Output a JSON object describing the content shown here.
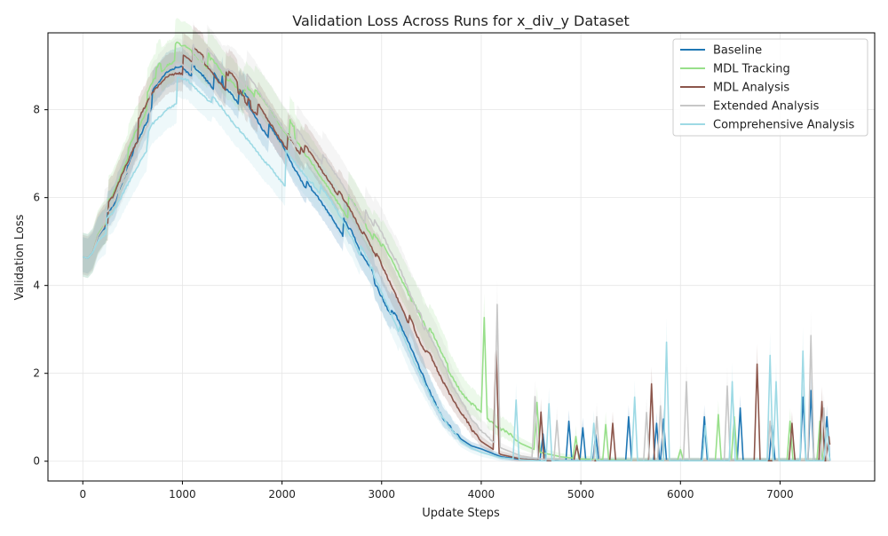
{
  "chart_data": {
    "type": "line",
    "title": "Validation Loss Across Runs for x_div_y Dataset",
    "xlabel": "Update Steps",
    "ylabel": "Validation Loss",
    "xlim": [
      -350,
      7950
    ],
    "ylim": [
      -0.45,
      9.75
    ],
    "xticks": [
      0,
      1000,
      2000,
      3000,
      4000,
      5000,
      6000,
      7000
    ],
    "yticks": [
      0,
      2,
      4,
      6,
      8
    ],
    "grid": true,
    "legend": "top-right",
    "series": [
      {
        "name": "Baseline",
        "color": "#1f77b4",
        "band": 0.35,
        "points": [
          [
            0,
            4.65
          ],
          [
            50,
            4.62
          ],
          [
            100,
            4.75
          ],
          [
            150,
            5.1
          ],
          [
            300,
            5.6
          ],
          [
            500,
            6.8
          ],
          [
            700,
            7.9
          ],
          [
            850,
            8.5
          ],
          [
            950,
            8.75
          ],
          [
            1000,
            8.8
          ],
          [
            1100,
            8.7
          ],
          [
            1200,
            8.6
          ],
          [
            1300,
            8.45
          ],
          [
            1400,
            8.2
          ],
          [
            1500,
            8.1
          ],
          [
            1600,
            7.9
          ],
          [
            1700,
            7.7
          ],
          [
            1800,
            7.4
          ],
          [
            1900,
            7.2
          ],
          [
            2000,
            6.95
          ],
          [
            2100,
            6.6
          ],
          [
            2200,
            6.3
          ],
          [
            2300,
            6.0
          ],
          [
            2400,
            5.75
          ],
          [
            2500,
            5.5
          ],
          [
            2600,
            5.2
          ],
          [
            2700,
            4.85
          ],
          [
            2800,
            4.4
          ],
          [
            2900,
            4.1
          ],
          [
            3000,
            3.7
          ],
          [
            3100,
            3.3
          ],
          [
            3200,
            2.85
          ],
          [
            3300,
            2.4
          ],
          [
            3400,
            1.9
          ],
          [
            3500,
            1.4
          ],
          [
            3600,
            0.95
          ],
          [
            3700,
            0.7
          ],
          [
            3800,
            0.5
          ],
          [
            3900,
            0.35
          ],
          [
            4000,
            0.28
          ],
          [
            4200,
            0.1
          ],
          [
            4400,
            0.04
          ],
          [
            4600,
            0.02
          ],
          [
            4800,
            0.01
          ],
          [
            5000,
            0.01
          ],
          [
            5500,
            0.01
          ],
          [
            6000,
            0.01
          ],
          [
            6500,
            0.01
          ],
          [
            7000,
            0.01
          ],
          [
            7500,
            0.01
          ]
        ],
        "spikes": [
          [
            4620,
            0.6
          ],
          [
            4880,
            0.9
          ],
          [
            5020,
            0.75
          ],
          [
            5150,
            0.6
          ],
          [
            5480,
            1.0
          ],
          [
            5760,
            0.85
          ],
          [
            5830,
            0.95
          ],
          [
            6240,
            1.0
          ],
          [
            6600,
            1.2
          ],
          [
            6920,
            0.8
          ],
          [
            7230,
            1.45
          ],
          [
            7310,
            1.6
          ],
          [
            7470,
            1.0
          ]
        ]
      },
      {
        "name": "MDL Tracking",
        "color": "#98df8a",
        "band": 0.45,
        "points": [
          [
            0,
            4.65
          ],
          [
            50,
            4.62
          ],
          [
            100,
            4.75
          ],
          [
            150,
            5.15
          ],
          [
            300,
            5.7
          ],
          [
            500,
            7.0
          ],
          [
            700,
            8.2
          ],
          [
            850,
            8.8
          ],
          [
            950,
            9.05
          ],
          [
            1050,
            9.05
          ],
          [
            1150,
            8.95
          ],
          [
            1300,
            8.8
          ],
          [
            1400,
            8.6
          ],
          [
            1500,
            8.45
          ],
          [
            1600,
            8.3
          ],
          [
            1700,
            8.15
          ],
          [
            1800,
            7.95
          ],
          [
            1900,
            7.75
          ],
          [
            2000,
            7.5
          ],
          [
            2100,
            7.25
          ],
          [
            2200,
            7.0
          ],
          [
            2300,
            6.8
          ],
          [
            2400,
            6.55
          ],
          [
            2500,
            6.3
          ],
          [
            2600,
            6.05
          ],
          [
            2700,
            5.75
          ],
          [
            2800,
            5.45
          ],
          [
            2900,
            5.1
          ],
          [
            3000,
            4.8
          ],
          [
            3100,
            4.4
          ],
          [
            3200,
            4.0
          ],
          [
            3300,
            3.6
          ],
          [
            3400,
            3.2
          ],
          [
            3500,
            2.75
          ],
          [
            3600,
            2.3
          ],
          [
            3700,
            1.9
          ],
          [
            3800,
            1.55
          ],
          [
            3900,
            1.3
          ],
          [
            4000,
            1.05
          ],
          [
            4200,
            0.7
          ],
          [
            4400,
            0.4
          ],
          [
            4600,
            0.2
          ],
          [
            4800,
            0.1
          ],
          [
            5000,
            0.05
          ],
          [
            5500,
            0.02
          ],
          [
            6000,
            0.01
          ],
          [
            6500,
            0.01
          ],
          [
            7000,
            0.01
          ],
          [
            7500,
            0.01
          ]
        ],
        "spikes": [
          [
            4030,
            2.25
          ],
          [
            4560,
            1.1
          ],
          [
            4950,
            0.5
          ],
          [
            5250,
            0.8
          ],
          [
            6000,
            0.25
          ],
          [
            6380,
            1.05
          ],
          [
            6540,
            1.0
          ],
          [
            7100,
            0.9
          ],
          [
            7400,
            0.9
          ]
        ]
      },
      {
        "name": "MDL Analysis",
        "color": "#8c564b",
        "band": 0.4,
        "points": [
          [
            0,
            4.65
          ],
          [
            50,
            4.62
          ],
          [
            100,
            4.75
          ],
          [
            150,
            5.12
          ],
          [
            300,
            5.65
          ],
          [
            500,
            6.9
          ],
          [
            700,
            8.0
          ],
          [
            850,
            8.55
          ],
          [
            950,
            8.75
          ],
          [
            1000,
            8.8
          ],
          [
            1100,
            8.75
          ],
          [
            1200,
            8.65
          ],
          [
            1300,
            8.5
          ],
          [
            1400,
            8.3
          ],
          [
            1500,
            8.2
          ],
          [
            1600,
            8.0
          ],
          [
            1700,
            7.85
          ],
          [
            1800,
            7.7
          ],
          [
            1900,
            7.45
          ],
          [
            2000,
            7.2
          ],
          [
            2100,
            6.95
          ],
          [
            2200,
            6.75
          ],
          [
            2300,
            6.5
          ],
          [
            2400,
            6.25
          ],
          [
            2500,
            6.0
          ],
          [
            2600,
            5.75
          ],
          [
            2700,
            5.45
          ],
          [
            2800,
            5.1
          ],
          [
            2900,
            4.75
          ],
          [
            3000,
            4.3
          ],
          [
            3100,
            3.9
          ],
          [
            3200,
            3.45
          ],
          [
            3300,
            3.0
          ],
          [
            3400,
            2.6
          ],
          [
            3500,
            2.2
          ],
          [
            3600,
            1.75
          ],
          [
            3700,
            1.35
          ],
          [
            3800,
            1.0
          ],
          [
            3900,
            0.7
          ],
          [
            4000,
            0.45
          ],
          [
            4200,
            0.15
          ],
          [
            4400,
            0.05
          ],
          [
            4600,
            0.02
          ],
          [
            4800,
            0.01
          ],
          [
            5000,
            0.01
          ],
          [
            5500,
            0.01
          ],
          [
            6000,
            0.01
          ],
          [
            6500,
            0.01
          ],
          [
            7000,
            0.01
          ],
          [
            7500,
            0.01
          ]
        ],
        "spikes": [
          [
            4150,
            2.3
          ],
          [
            4600,
            1.1
          ],
          [
            4960,
            0.35
          ],
          [
            5320,
            0.85
          ],
          [
            5710,
            1.75
          ],
          [
            6770,
            2.2
          ],
          [
            7120,
            0.85
          ],
          [
            7420,
            1.35
          ],
          [
            7490,
            0.55
          ]
        ]
      },
      {
        "name": "Extended Analysis",
        "color": "#c7c7c7",
        "band": 0.45,
        "points": [
          [
            0,
            4.65
          ],
          [
            50,
            4.62
          ],
          [
            100,
            4.75
          ],
          [
            150,
            5.12
          ],
          [
            300,
            5.65
          ],
          [
            500,
            6.9
          ],
          [
            700,
            8.1
          ],
          [
            850,
            8.7
          ],
          [
            950,
            8.95
          ],
          [
            1050,
            9.0
          ],
          [
            1150,
            8.85
          ],
          [
            1300,
            8.65
          ],
          [
            1400,
            8.5
          ],
          [
            1500,
            8.6
          ],
          [
            1600,
            8.45
          ],
          [
            1700,
            8.25
          ],
          [
            1800,
            8.0
          ],
          [
            1900,
            7.8
          ],
          [
            2000,
            7.55
          ],
          [
            2100,
            7.35
          ],
          [
            2200,
            7.1
          ],
          [
            2300,
            6.9
          ],
          [
            2400,
            6.7
          ],
          [
            2500,
            6.45
          ],
          [
            2600,
            6.2
          ],
          [
            2700,
            5.9
          ],
          [
            2800,
            5.6
          ],
          [
            2900,
            5.25
          ],
          [
            3000,
            4.9
          ],
          [
            3100,
            4.5
          ],
          [
            3200,
            4.1
          ],
          [
            3300,
            3.6
          ],
          [
            3400,
            3.1
          ],
          [
            3500,
            2.6
          ],
          [
            3600,
            2.15
          ],
          [
            3700,
            1.7
          ],
          [
            3800,
            1.3
          ],
          [
            3900,
            0.95
          ],
          [
            4000,
            0.65
          ],
          [
            4200,
            0.3
          ],
          [
            4400,
            0.12
          ],
          [
            4600,
            0.05
          ],
          [
            4800,
            0.02
          ],
          [
            5000,
            0.01
          ],
          [
            5500,
            0.01
          ],
          [
            6000,
            0.01
          ],
          [
            6500,
            0.01
          ],
          [
            7000,
            0.01
          ],
          [
            7500,
            0.01
          ]
        ],
        "spikes": [
          [
            4160,
            3.2
          ],
          [
            4540,
            1.4
          ],
          [
            4760,
            0.9
          ],
          [
            5160,
            1.0
          ],
          [
            5660,
            1.1
          ],
          [
            5800,
            1.25
          ],
          [
            6060,
            1.8
          ],
          [
            6470,
            1.7
          ],
          [
            6900,
            0.9
          ],
          [
            7310,
            2.85
          ],
          [
            7440,
            1.2
          ]
        ]
      },
      {
        "name": "Comprehensive Analysis",
        "color": "#9edae5",
        "band": 0.45,
        "points": [
          [
            0,
            4.65
          ],
          [
            50,
            4.62
          ],
          [
            100,
            4.75
          ],
          [
            150,
            5.0
          ],
          [
            300,
            5.35
          ],
          [
            500,
            6.4
          ],
          [
            700,
            7.4
          ],
          [
            850,
            7.9
          ],
          [
            950,
            8.15
          ],
          [
            1050,
            8.2
          ],
          [
            1150,
            8.1
          ],
          [
            1300,
            7.95
          ],
          [
            1400,
            7.8
          ],
          [
            1500,
            7.6
          ],
          [
            1600,
            7.45
          ],
          [
            1700,
            7.3
          ],
          [
            1800,
            7.1
          ],
          [
            1900,
            6.95
          ],
          [
            2000,
            6.75
          ],
          [
            2100,
            6.55
          ],
          [
            2200,
            6.35
          ],
          [
            2300,
            6.15
          ],
          [
            2400,
            5.9
          ],
          [
            2500,
            5.65
          ],
          [
            2600,
            5.35
          ],
          [
            2700,
            5.0
          ],
          [
            2800,
            4.6
          ],
          [
            2900,
            4.2
          ],
          [
            3000,
            3.75
          ],
          [
            3100,
            3.3
          ],
          [
            3200,
            2.8
          ],
          [
            3300,
            2.3
          ],
          [
            3400,
            1.85
          ],
          [
            3500,
            1.4
          ],
          [
            3600,
            1.0
          ],
          [
            3700,
            0.7
          ],
          [
            3800,
            0.45
          ],
          [
            3900,
            0.3
          ],
          [
            4000,
            0.2
          ],
          [
            4200,
            0.08
          ],
          [
            4400,
            0.03
          ],
          [
            4600,
            0.01
          ],
          [
            4800,
            0.01
          ],
          [
            5000,
            0.01
          ],
          [
            5500,
            0.01
          ],
          [
            6000,
            0.01
          ],
          [
            6500,
            0.01
          ],
          [
            7000,
            0.01
          ],
          [
            7500,
            0.01
          ]
        ],
        "spikes": [
          [
            4350,
            1.35
          ],
          [
            4680,
            1.3
          ],
          [
            5130,
            0.85
          ],
          [
            5540,
            1.45
          ],
          [
            5860,
            2.7
          ],
          [
            6250,
            0.8
          ],
          [
            6520,
            1.8
          ],
          [
            6900,
            2.4
          ],
          [
            6960,
            1.8
          ],
          [
            7230,
            2.5
          ],
          [
            7470,
            0.75
          ]
        ]
      }
    ]
  }
}
